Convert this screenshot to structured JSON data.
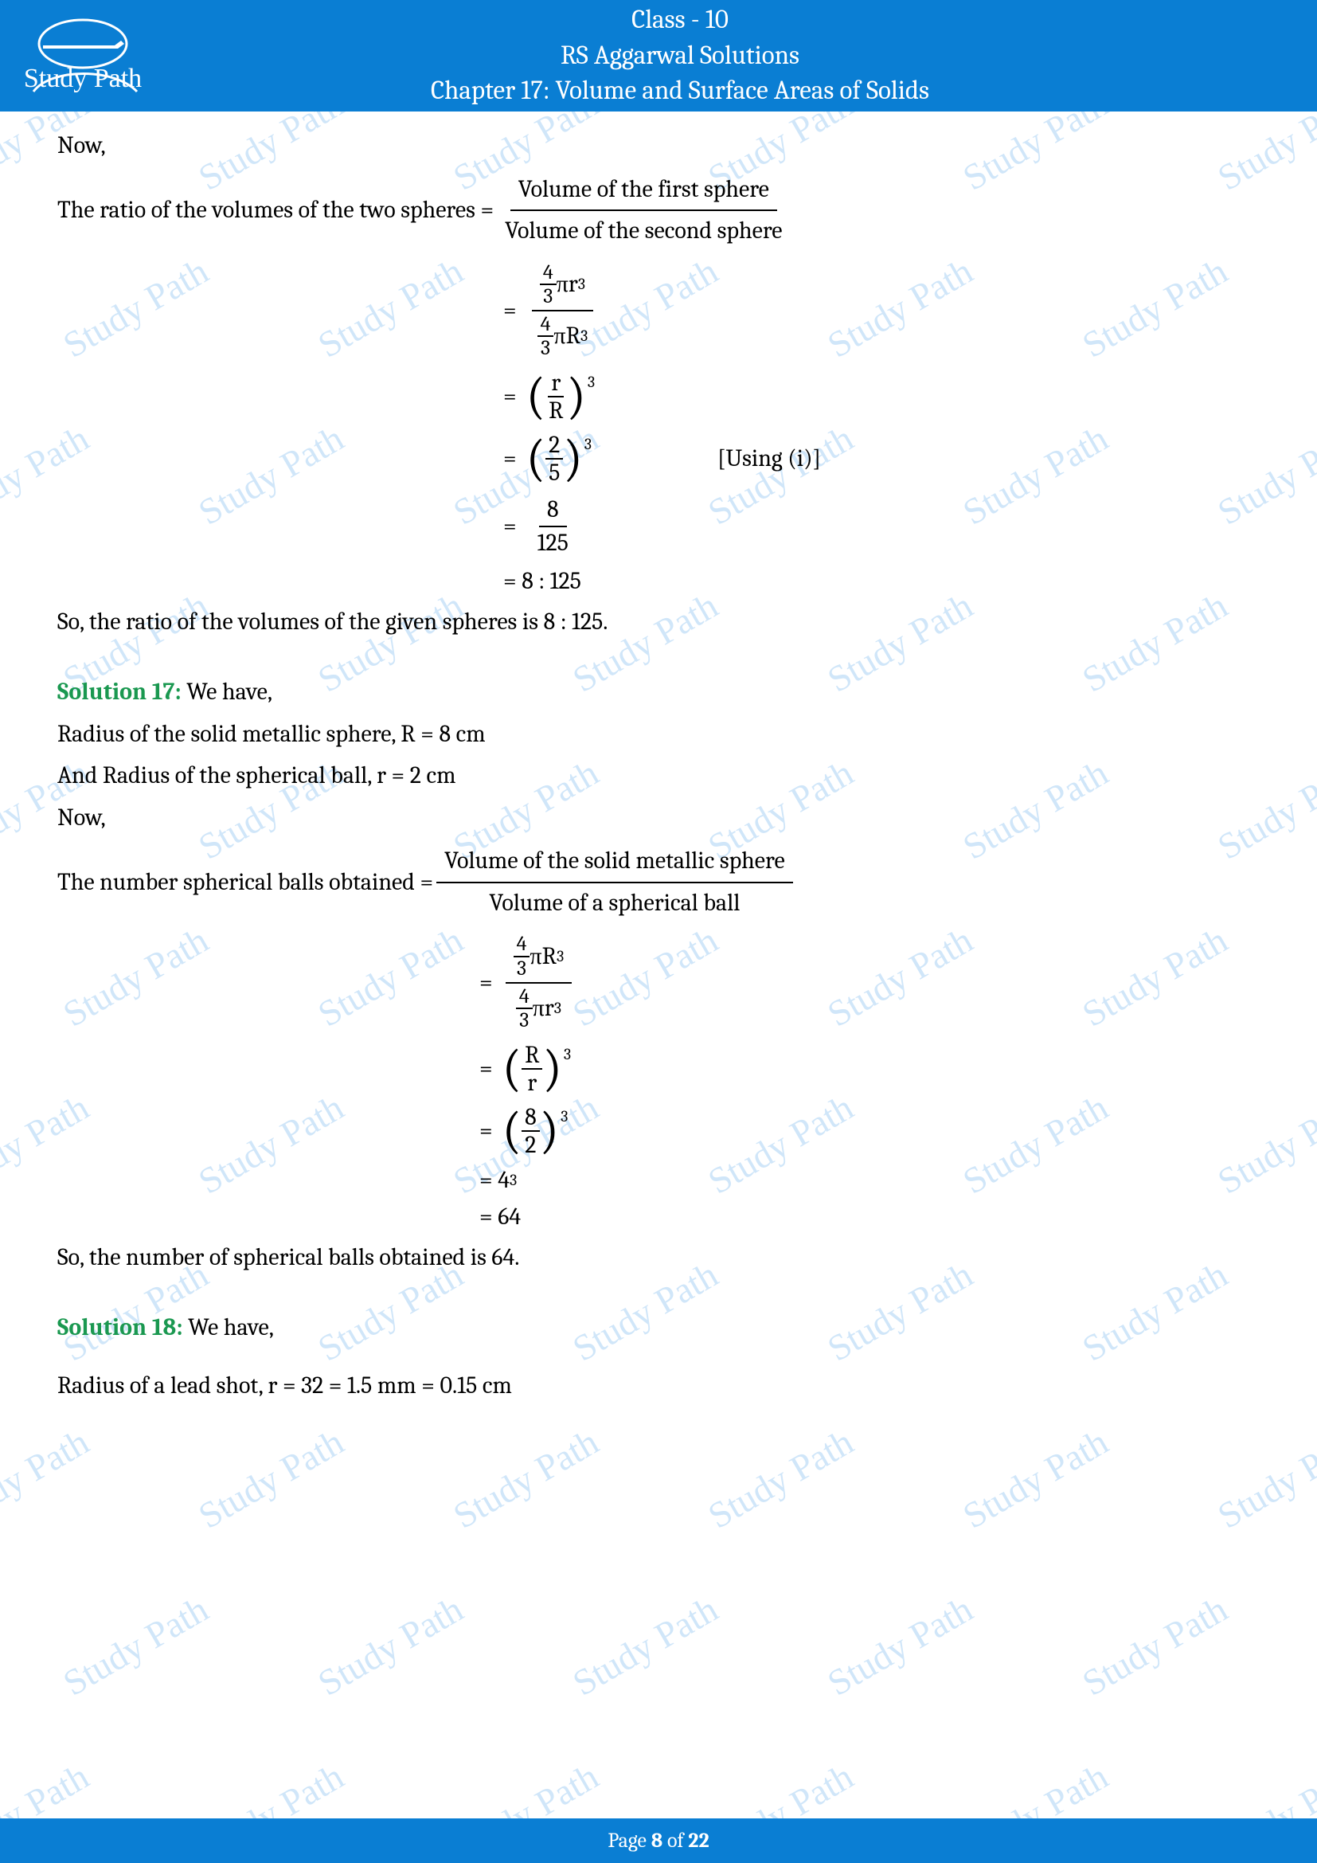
{
  "header": {
    "line1": "Class - 10",
    "line2": "RS Aggarwal Solutions",
    "line3": "Chapter 17: Volume and Surface Areas of Solids",
    "logo_text": "Study Path",
    "logo_color": "#ffffff"
  },
  "watermark": {
    "text": "Study Path",
    "color": "rgba(42,142,228,0.22)"
  },
  "body": {
    "now": "Now,",
    "s16": {
      "lead": "The ratio of the volumes of the two spheres = ",
      "frac_top": "Volume of the first sphere",
      "frac_bot": "Volume of the second sphere",
      "step1_num_a": "4",
      "step1_num_b": "3",
      "step1_num_c": "πr",
      "step1_num_exp": "3",
      "step1_den_a": "4",
      "step1_den_b": "3",
      "step1_den_c": "πR",
      "step1_den_exp": "3",
      "step2_inner_top": "r",
      "step2_inner_bot": "R",
      "step2_exp": "3",
      "step3_inner_top": "2",
      "step3_inner_bot": "5",
      "step3_exp": "3",
      "step3_note": "[Using (i)]",
      "step4_top": "8",
      "step4_bot": "125",
      "step5": "= 8 :  125",
      "conclusion": "So, the ratio of the volumes of the given spheres is 8 : 125."
    },
    "s17": {
      "label": "Solution 17:",
      "intro": " We have,",
      "l1": "Radius of the solid metallic sphere, R = 8 cm",
      "l2": "And Radius of the spherical ball, r = 2 cm",
      "l3": "Now,",
      "lead": "The number spherical balls obtained = ",
      "frac_top": "Volume of the solid metallic sphere",
      "frac_bot": "Volume of a spherical ball",
      "step1_num_a": "4",
      "step1_num_b": "3",
      "step1_num_c": "πR",
      "step1_num_exp": "3",
      "step1_den_a": "4",
      "step1_den_b": "3",
      "step1_den_c": "πr",
      "step1_den_exp": "3",
      "step2_inner_top": "R",
      "step2_inner_bot": "r",
      "step2_exp": "3",
      "step3_inner_top": "8",
      "step3_inner_bot": "2",
      "step3_exp": "3",
      "step4": "= 4",
      "step4_exp": "3",
      "step5": "= 64",
      "conclusion": "So, the number of spherical balls obtained is 64."
    },
    "s18": {
      "label": "Solution 18:",
      "intro": " We have,",
      "l1": "Radius of a lead shot, r = 32 = 1.5 mm = 0.15 cm"
    }
  },
  "footer": {
    "pre": "Page ",
    "cur": "8",
    "mid": " of ",
    "total": "22"
  },
  "colors": {
    "header_bg": "#0a7ed3",
    "sol_label": "#1a9850",
    "text": "#000000"
  }
}
